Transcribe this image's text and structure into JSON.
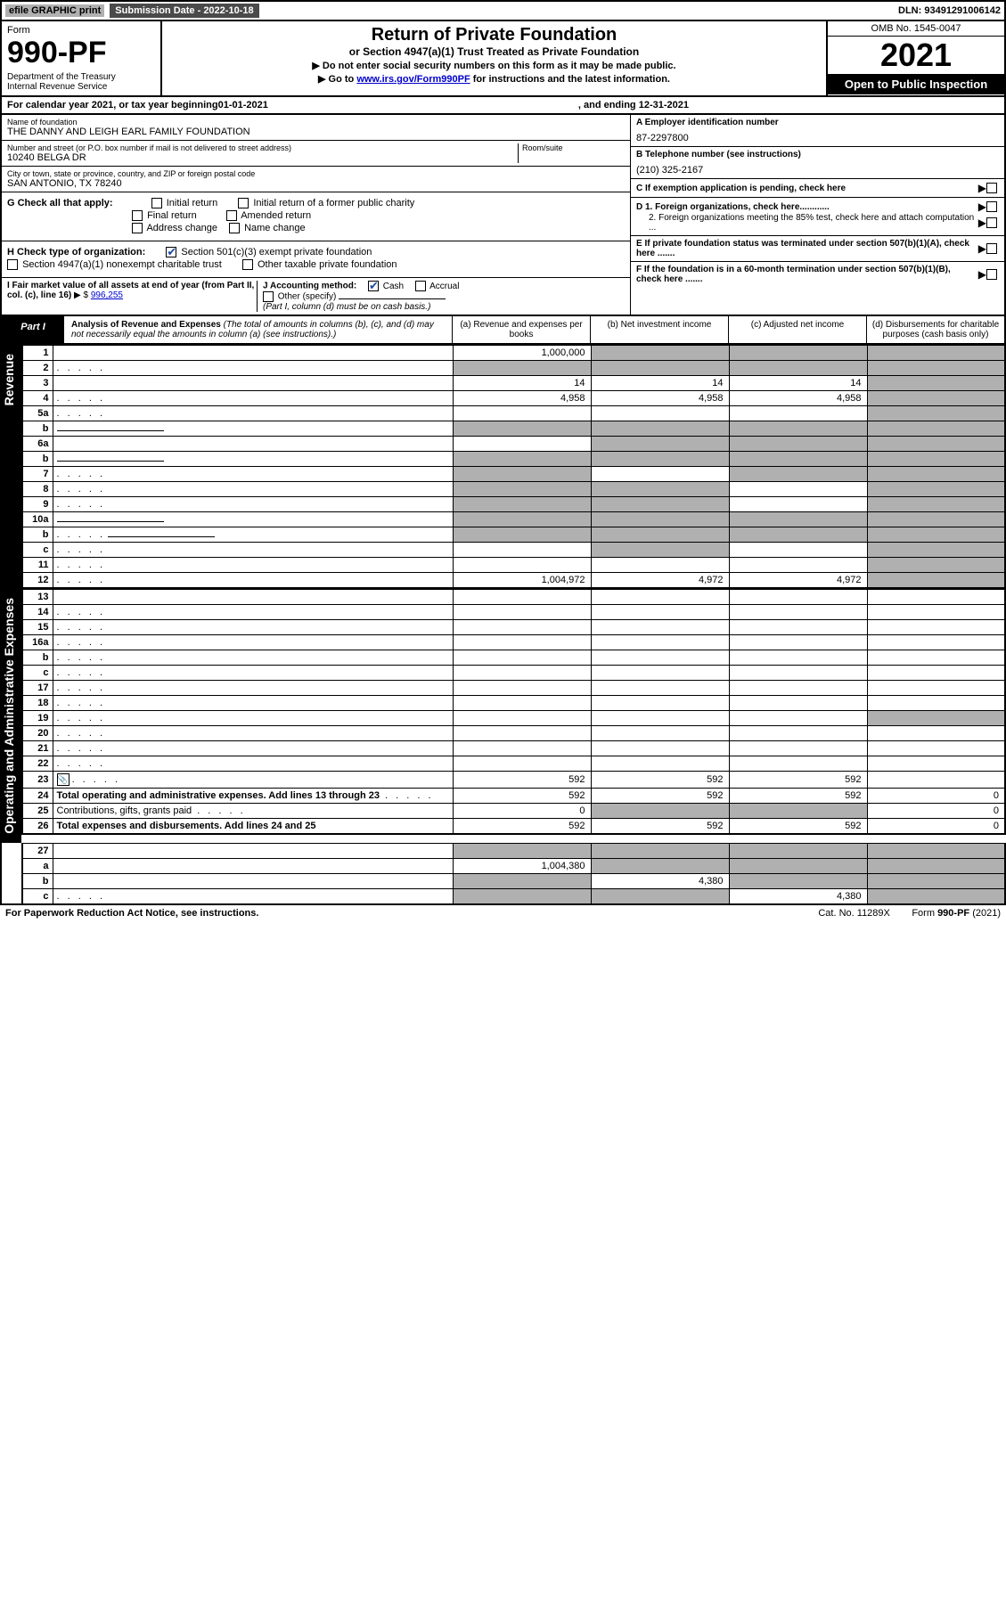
{
  "topbar": {
    "efile": "efile GRAPHIC print",
    "subdate_label": "Submission Date - 2022-10-18",
    "dln": "DLN: 93491291006142"
  },
  "header": {
    "form_label": "Form",
    "form_num": "990-PF",
    "dept": "Department of the Treasury\nInternal Revenue Service",
    "title": "Return of Private Foundation",
    "subtitle": "or Section 4947(a)(1) Trust Treated as Private Foundation",
    "instr1": "▶ Do not enter social security numbers on this form as it may be made public.",
    "instr2_pre": "▶ Go to ",
    "instr2_link": "www.irs.gov/Form990PF",
    "instr2_post": " for instructions and the latest information.",
    "omb": "OMB No. 1545-0047",
    "year": "2021",
    "open": "Open to Public Inspection"
  },
  "cal": {
    "pre": "For calendar year 2021, or tax year beginning ",
    "begin": "01-01-2021",
    "mid": " , and ending ",
    "end": "12-31-2021"
  },
  "id": {
    "name_lbl": "Name of foundation",
    "name": "THE DANNY AND LEIGH EARL FAMILY FOUNDATION",
    "addr_lbl": "Number and street (or P.O. box number if mail is not delivered to street address)",
    "addr": "10240 BELGA DR",
    "room_lbl": "Room/suite",
    "city_lbl": "City or town, state or province, country, and ZIP or foreign postal code",
    "city": "SAN ANTONIO, TX  78240",
    "a_lbl": "A Employer identification number",
    "a_val": "87-2297800",
    "b_lbl": "B Telephone number (see instructions)",
    "b_val": "(210) 325-2167",
    "c_lbl": "C If exemption application is pending, check here",
    "d1_lbl": "D 1. Foreign organizations, check here............",
    "d2_lbl": "2. Foreign organizations meeting the 85% test, check here and attach computation ...",
    "e_lbl": "E  If private foundation status was terminated under section 507(b)(1)(A), check here .......",
    "f_lbl": "F  If the foundation is in a 60-month termination under section 507(b)(1)(B), check here .......",
    "g_lbl": "G Check all that apply:",
    "g_opts": [
      "Initial return",
      "Initial return of a former public charity",
      "Final return",
      "Amended return",
      "Address change",
      "Name change"
    ],
    "h_lbl": "H Check type of organization:",
    "h_opt1": "Section 501(c)(3) exempt private foundation",
    "h_opt2": "Section 4947(a)(1) nonexempt charitable trust",
    "h_opt3": "Other taxable private foundation",
    "i_lbl": "I Fair market value of all assets at end of year (from Part II, col. (c), line 16)",
    "i_val": "996,255",
    "j_lbl": "J Accounting method:",
    "j_cash": "Cash",
    "j_accrual": "Accrual",
    "j_other": "Other (specify)",
    "j_note": "(Part I, column (d) must be on cash basis.)"
  },
  "part1": {
    "tag": "Part I",
    "title": "Analysis of Revenue and Expenses",
    "note": " (The total of amounts in columns (b), (c), and (d) may not necessarily equal the amounts in column (a) (see instructions).)",
    "col_a": "(a) Revenue and expenses per books",
    "col_b": "(b) Net investment income",
    "col_c": "(c) Adjusted net income",
    "col_d": "(d) Disbursements for charitable purposes (cash basis only)"
  },
  "sections": {
    "revenue": "Revenue",
    "opadmin": "Operating and Administrative Expenses"
  },
  "rows": [
    {
      "n": "1",
      "d": "",
      "a": "1,000,000",
      "b": "",
      "c": "",
      "sb": true,
      "sc": true,
      "sd": true
    },
    {
      "n": "2",
      "d": "",
      "dots": true,
      "a": "",
      "b": "",
      "c": "",
      "sa": true,
      "sb": true,
      "sc": true,
      "sd": true
    },
    {
      "n": "3",
      "d": "",
      "a": "14",
      "b": "14",
      "c": "14",
      "sd": true
    },
    {
      "n": "4",
      "d": "",
      "dots": true,
      "a": "4,958",
      "b": "4,958",
      "c": "4,958",
      "sd": true
    },
    {
      "n": "5a",
      "d": "",
      "dots": true,
      "a": "",
      "b": "",
      "c": "",
      "sd": true
    },
    {
      "n": "b",
      "d": "",
      "inline": true,
      "a": "",
      "b": "",
      "c": "",
      "sa": true,
      "sb": true,
      "sc": true,
      "sd": true
    },
    {
      "n": "6a",
      "d": "",
      "a": "",
      "b": "",
      "c": "",
      "sb": true,
      "sc": true,
      "sd": true
    },
    {
      "n": "b",
      "d": "",
      "inline": true,
      "a": "",
      "b": "",
      "c": "",
      "sa": true,
      "sb": true,
      "sc": true,
      "sd": true
    },
    {
      "n": "7",
      "d": "",
      "dots": true,
      "a": "",
      "b": "",
      "c": "",
      "sa": true,
      "sc": true,
      "sd": true
    },
    {
      "n": "8",
      "d": "",
      "dots": true,
      "a": "",
      "b": "",
      "c": "",
      "sa": true,
      "sb": true,
      "sd": true
    },
    {
      "n": "9",
      "d": "",
      "dots": true,
      "a": "",
      "b": "",
      "c": "",
      "sa": true,
      "sb": true,
      "sd": true
    },
    {
      "n": "10a",
      "d": "",
      "inline": true,
      "a": "",
      "b": "",
      "c": "",
      "sa": true,
      "sb": true,
      "sc": true,
      "sd": true
    },
    {
      "n": "b",
      "d": "",
      "dots": true,
      "inline": true,
      "a": "",
      "b": "",
      "c": "",
      "sa": true,
      "sb": true,
      "sc": true,
      "sd": true
    },
    {
      "n": "c",
      "d": "",
      "dots": true,
      "a": "",
      "b": "",
      "c": "",
      "sb": true,
      "sd": true
    },
    {
      "n": "11",
      "d": "",
      "dots": true,
      "a": "",
      "b": "",
      "c": "",
      "sd": true
    },
    {
      "n": "12",
      "d": "",
      "dots": true,
      "bold": true,
      "a": "1,004,972",
      "b": "4,972",
      "c": "4,972",
      "sd": true
    }
  ],
  "rows2": [
    {
      "n": "13",
      "d": "",
      "a": "",
      "b": "",
      "c": ""
    },
    {
      "n": "14",
      "d": "",
      "dots": true,
      "a": "",
      "b": "",
      "c": ""
    },
    {
      "n": "15",
      "d": "",
      "dots": true,
      "a": "",
      "b": "",
      "c": ""
    },
    {
      "n": "16a",
      "d": "",
      "dots": true,
      "a": "",
      "b": "",
      "c": ""
    },
    {
      "n": "b",
      "d": "",
      "dots": true,
      "a": "",
      "b": "",
      "c": ""
    },
    {
      "n": "c",
      "d": "",
      "dots": true,
      "a": "",
      "b": "",
      "c": ""
    },
    {
      "n": "17",
      "d": "",
      "dots": true,
      "a": "",
      "b": "",
      "c": ""
    },
    {
      "n": "18",
      "d": "",
      "dots": true,
      "a": "",
      "b": "",
      "c": ""
    },
    {
      "n": "19",
      "d": "",
      "dots": true,
      "a": "",
      "b": "",
      "c": "",
      "sd": true
    },
    {
      "n": "20",
      "d": "",
      "dots": true,
      "a": "",
      "b": "",
      "c": ""
    },
    {
      "n": "21",
      "d": "",
      "dots": true,
      "a": "",
      "b": "",
      "c": ""
    },
    {
      "n": "22",
      "d": "",
      "dots": true,
      "a": "",
      "b": "",
      "c": ""
    },
    {
      "n": "23",
      "d": "",
      "dots": true,
      "icon": true,
      "a": "592",
      "b": "592",
      "c": "592"
    },
    {
      "n": "24",
      "d": "Total operating and administrative expenses. Add lines 13 through 23",
      "dots": true,
      "bold": true,
      "a": "592",
      "b": "592",
      "c": "592",
      "dval": "0"
    },
    {
      "n": "25",
      "d": "Contributions, gifts, grants paid",
      "dots": true,
      "a": "0",
      "b": "",
      "c": "",
      "dval": "0",
      "sb": true,
      "sc": true
    },
    {
      "n": "26",
      "d": "Total expenses and disbursements. Add lines 24 and 25",
      "bold": true,
      "a": "592",
      "b": "592",
      "c": "592",
      "dval": "0"
    }
  ],
  "rows3": [
    {
      "n": "27",
      "d": "",
      "a": "",
      "b": "",
      "c": "",
      "sa": true,
      "sb": true,
      "sc": true,
      "sd": true
    },
    {
      "n": "a",
      "d": "",
      "bold": true,
      "a": "1,004,380",
      "b": "",
      "c": "",
      "sb": true,
      "sc": true,
      "sd": true
    },
    {
      "n": "b",
      "d": "",
      "bold": true,
      "a": "",
      "b": "4,380",
      "c": "",
      "sa": true,
      "sc": true,
      "sd": true
    },
    {
      "n": "c",
      "d": "",
      "dots": true,
      "bold": true,
      "a": "",
      "b": "",
      "c": "4,380",
      "sa": true,
      "sb": true,
      "sd": true
    }
  ],
  "footer": {
    "left": "For Paperwork Reduction Act Notice, see instructions.",
    "mid": "Cat. No. 11289X",
    "right": "Form 990-PF (2021)"
  }
}
